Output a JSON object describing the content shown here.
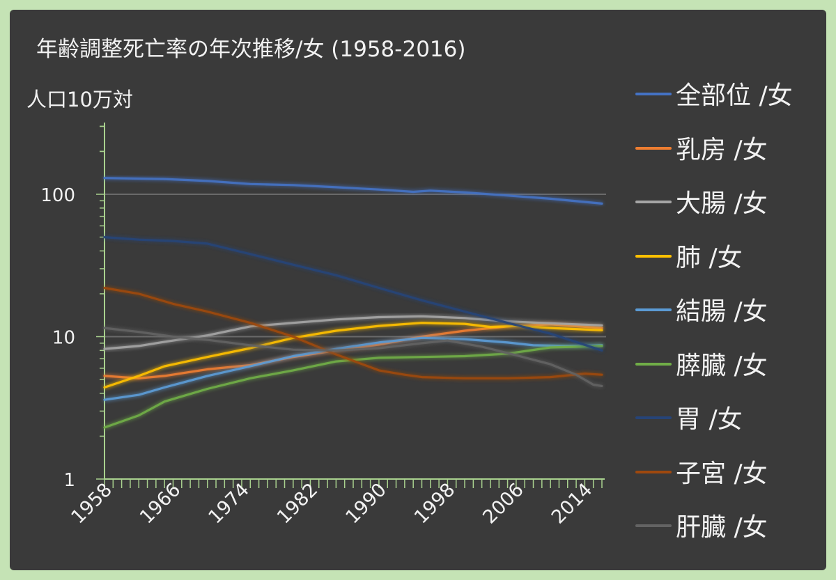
{
  "chart_data": {
    "type": "line",
    "title": "年齢調整死亡率の年次推移/女 (1958-2016)",
    "ylabel": "人口10万対",
    "xlabel": "",
    "yscale": "log",
    "ylim": [
      1,
      320
    ],
    "y_ticks": [
      1,
      10,
      100
    ],
    "y_tick_labels": [
      "1",
      "10",
      "100"
    ],
    "xlim": [
      1958,
      2016
    ],
    "x_tick_labels": [
      "1958",
      "1966",
      "1974",
      "1982",
      "1990",
      "1998",
      "2006",
      "2014"
    ],
    "grid": "y-major",
    "legend_position": "right",
    "series": [
      {
        "name": "全部位 /女",
        "color": "#4472c4",
        "points": [
          [
            1958,
            130
          ],
          [
            1965,
            128
          ],
          [
            1970,
            124
          ],
          [
            1975,
            118
          ],
          [
            1980,
            116
          ],
          [
            1985,
            112
          ],
          [
            1990,
            108
          ],
          [
            1994,
            104
          ],
          [
            1996,
            106
          ],
          [
            2000,
            103
          ],
          [
            2005,
            98
          ],
          [
            2010,
            93
          ],
          [
            2016,
            86
          ]
        ]
      },
      {
        "name": "乳房 /女",
        "color": "#ed7d31",
        "points": [
          [
            1958,
            5.3
          ],
          [
            1962,
            5.1
          ],
          [
            1965,
            5.3
          ],
          [
            1970,
            5.9
          ],
          [
            1975,
            6.3
          ],
          [
            1980,
            7.2
          ],
          [
            1985,
            8.0
          ],
          [
            1990,
            8.8
          ],
          [
            1995,
            10.0
          ],
          [
            2000,
            11.0
          ],
          [
            2005,
            11.8
          ],
          [
            2010,
            12.2
          ],
          [
            2016,
            11.5
          ]
        ]
      },
      {
        "name": "大腸 /女",
        "color": "#a5a5a5",
        "points": [
          [
            1958,
            8.2
          ],
          [
            1962,
            8.6
          ],
          [
            1965,
            9.2
          ],
          [
            1970,
            10.2
          ],
          [
            1975,
            11.8
          ],
          [
            1980,
            12.5
          ],
          [
            1985,
            13.2
          ],
          [
            1990,
            13.7
          ],
          [
            1995,
            13.9
          ],
          [
            2000,
            13.5
          ],
          [
            2005,
            12.8
          ],
          [
            2010,
            12.4
          ],
          [
            2016,
            12.0
          ]
        ]
      },
      {
        "name": "肺 /女",
        "color": "#ffc000",
        "points": [
          [
            1958,
            4.4
          ],
          [
            1962,
            5.3
          ],
          [
            1965,
            6.2
          ],
          [
            1970,
            7.2
          ],
          [
            1975,
            8.3
          ],
          [
            1980,
            9.8
          ],
          [
            1985,
            11.0
          ],
          [
            1990,
            11.9
          ],
          [
            1995,
            12.5
          ],
          [
            2000,
            12.3
          ],
          [
            2003,
            11.7
          ],
          [
            2006,
            11.9
          ],
          [
            2010,
            11.5
          ],
          [
            2016,
            11.1
          ]
        ]
      },
      {
        "name": "結腸 /女",
        "color": "#5b9bd5",
        "points": [
          [
            1958,
            3.6
          ],
          [
            1962,
            3.9
          ],
          [
            1965,
            4.4
          ],
          [
            1970,
            5.3
          ],
          [
            1975,
            6.2
          ],
          [
            1980,
            7.3
          ],
          [
            1985,
            8.2
          ],
          [
            1990,
            9.1
          ],
          [
            1995,
            9.8
          ],
          [
            2000,
            9.6
          ],
          [
            2005,
            9.1
          ],
          [
            2008,
            8.7
          ],
          [
            2012,
            8.6
          ],
          [
            2016,
            8.7
          ]
        ]
      },
      {
        "name": "膵臓 /女",
        "color": "#70ad47",
        "points": [
          [
            1958,
            2.3
          ],
          [
            1962,
            2.8
          ],
          [
            1965,
            3.5
          ],
          [
            1970,
            4.3
          ],
          [
            1975,
            5.1
          ],
          [
            1980,
            5.8
          ],
          [
            1985,
            6.7
          ],
          [
            1990,
            7.1
          ],
          [
            1995,
            7.2
          ],
          [
            2000,
            7.3
          ],
          [
            2005,
            7.6
          ],
          [
            2010,
            8.4
          ],
          [
            2016,
            8.6
          ]
        ]
      },
      {
        "name": "胃 /女",
        "color": "#264478",
        "points": [
          [
            1958,
            50
          ],
          [
            1962,
            48
          ],
          [
            1966,
            47
          ],
          [
            1970,
            45
          ],
          [
            1975,
            38
          ],
          [
            1980,
            32
          ],
          [
            1985,
            27
          ],
          [
            1990,
            22
          ],
          [
            1995,
            18
          ],
          [
            2000,
            15
          ],
          [
            2005,
            12.5
          ],
          [
            2010,
            10.5
          ],
          [
            2016,
            8.0
          ]
        ]
      },
      {
        "name": "子宮 /女",
        "color": "#9e480e",
        "points": [
          [
            1958,
            22
          ],
          [
            1962,
            20
          ],
          [
            1966,
            17
          ],
          [
            1970,
            15
          ],
          [
            1975,
            12.5
          ],
          [
            1980,
            10
          ],
          [
            1985,
            7.5
          ],
          [
            1990,
            5.8
          ],
          [
            1993,
            5.4
          ],
          [
            1995,
            5.2
          ],
          [
            2000,
            5.1
          ],
          [
            2005,
            5.1
          ],
          [
            2010,
            5.2
          ],
          [
            2014,
            5.5
          ],
          [
            2016,
            5.4
          ]
        ]
      },
      {
        "name": "肝臓 /女",
        "color": "#636363",
        "points": [
          [
            1958,
            11.5
          ],
          [
            1962,
            10.8
          ],
          [
            1966,
            10.0
          ],
          [
            1970,
            9.5
          ],
          [
            1975,
            8.7
          ],
          [
            1980,
            8.1
          ],
          [
            1985,
            8.0
          ],
          [
            1990,
            8.3
          ],
          [
            1995,
            9.0
          ],
          [
            1998,
            9.4
          ],
          [
            2002,
            8.5
          ],
          [
            2006,
            7.4
          ],
          [
            2010,
            6.4
          ],
          [
            2013,
            5.4
          ],
          [
            2015,
            4.6
          ],
          [
            2016,
            4.5
          ]
        ]
      }
    ]
  }
}
